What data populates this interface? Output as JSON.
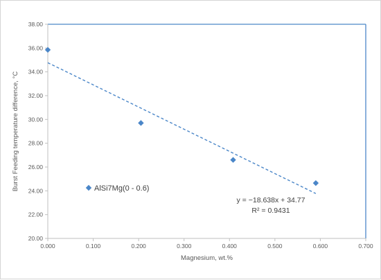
{
  "chart_data": {
    "type": "scatter",
    "xlabel": "Magnesium, wt.%",
    "ylabel": "Burst Feeding  temperature difference, °C",
    "xlim": [
      0.0,
      0.7
    ],
    "ylim": [
      20.0,
      38.0
    ],
    "x_ticks": [
      "0.000",
      "0.100",
      "0.200",
      "0.300",
      "0.400",
      "0.500",
      "0.600",
      "0.700"
    ],
    "y_ticks": [
      "20.00",
      "22.00",
      "24.00",
      "26.00",
      "28.00",
      "30.00",
      "32.00",
      "34.00",
      "36.00",
      "38.00"
    ],
    "series": [
      {
        "name": "AlSi7Mg(0 - 0.6)",
        "color": "#4a86c8",
        "marker": "diamond",
        "points": [
          {
            "x": 0.0,
            "y": 35.85
          },
          {
            "x": 0.205,
            "y": 29.7
          },
          {
            "x": 0.408,
            "y": 26.6
          },
          {
            "x": 0.59,
            "y": 24.65
          }
        ]
      }
    ],
    "trendline": {
      "type": "linear",
      "slope": -18.638,
      "intercept": 34.77,
      "x_range": [
        0.0,
        0.59
      ],
      "style": "dashed",
      "equation": "y = −18.638x + 34.77",
      "r2": "R² = 0.9431"
    },
    "legend_position": "inside-left",
    "grid": false
  }
}
